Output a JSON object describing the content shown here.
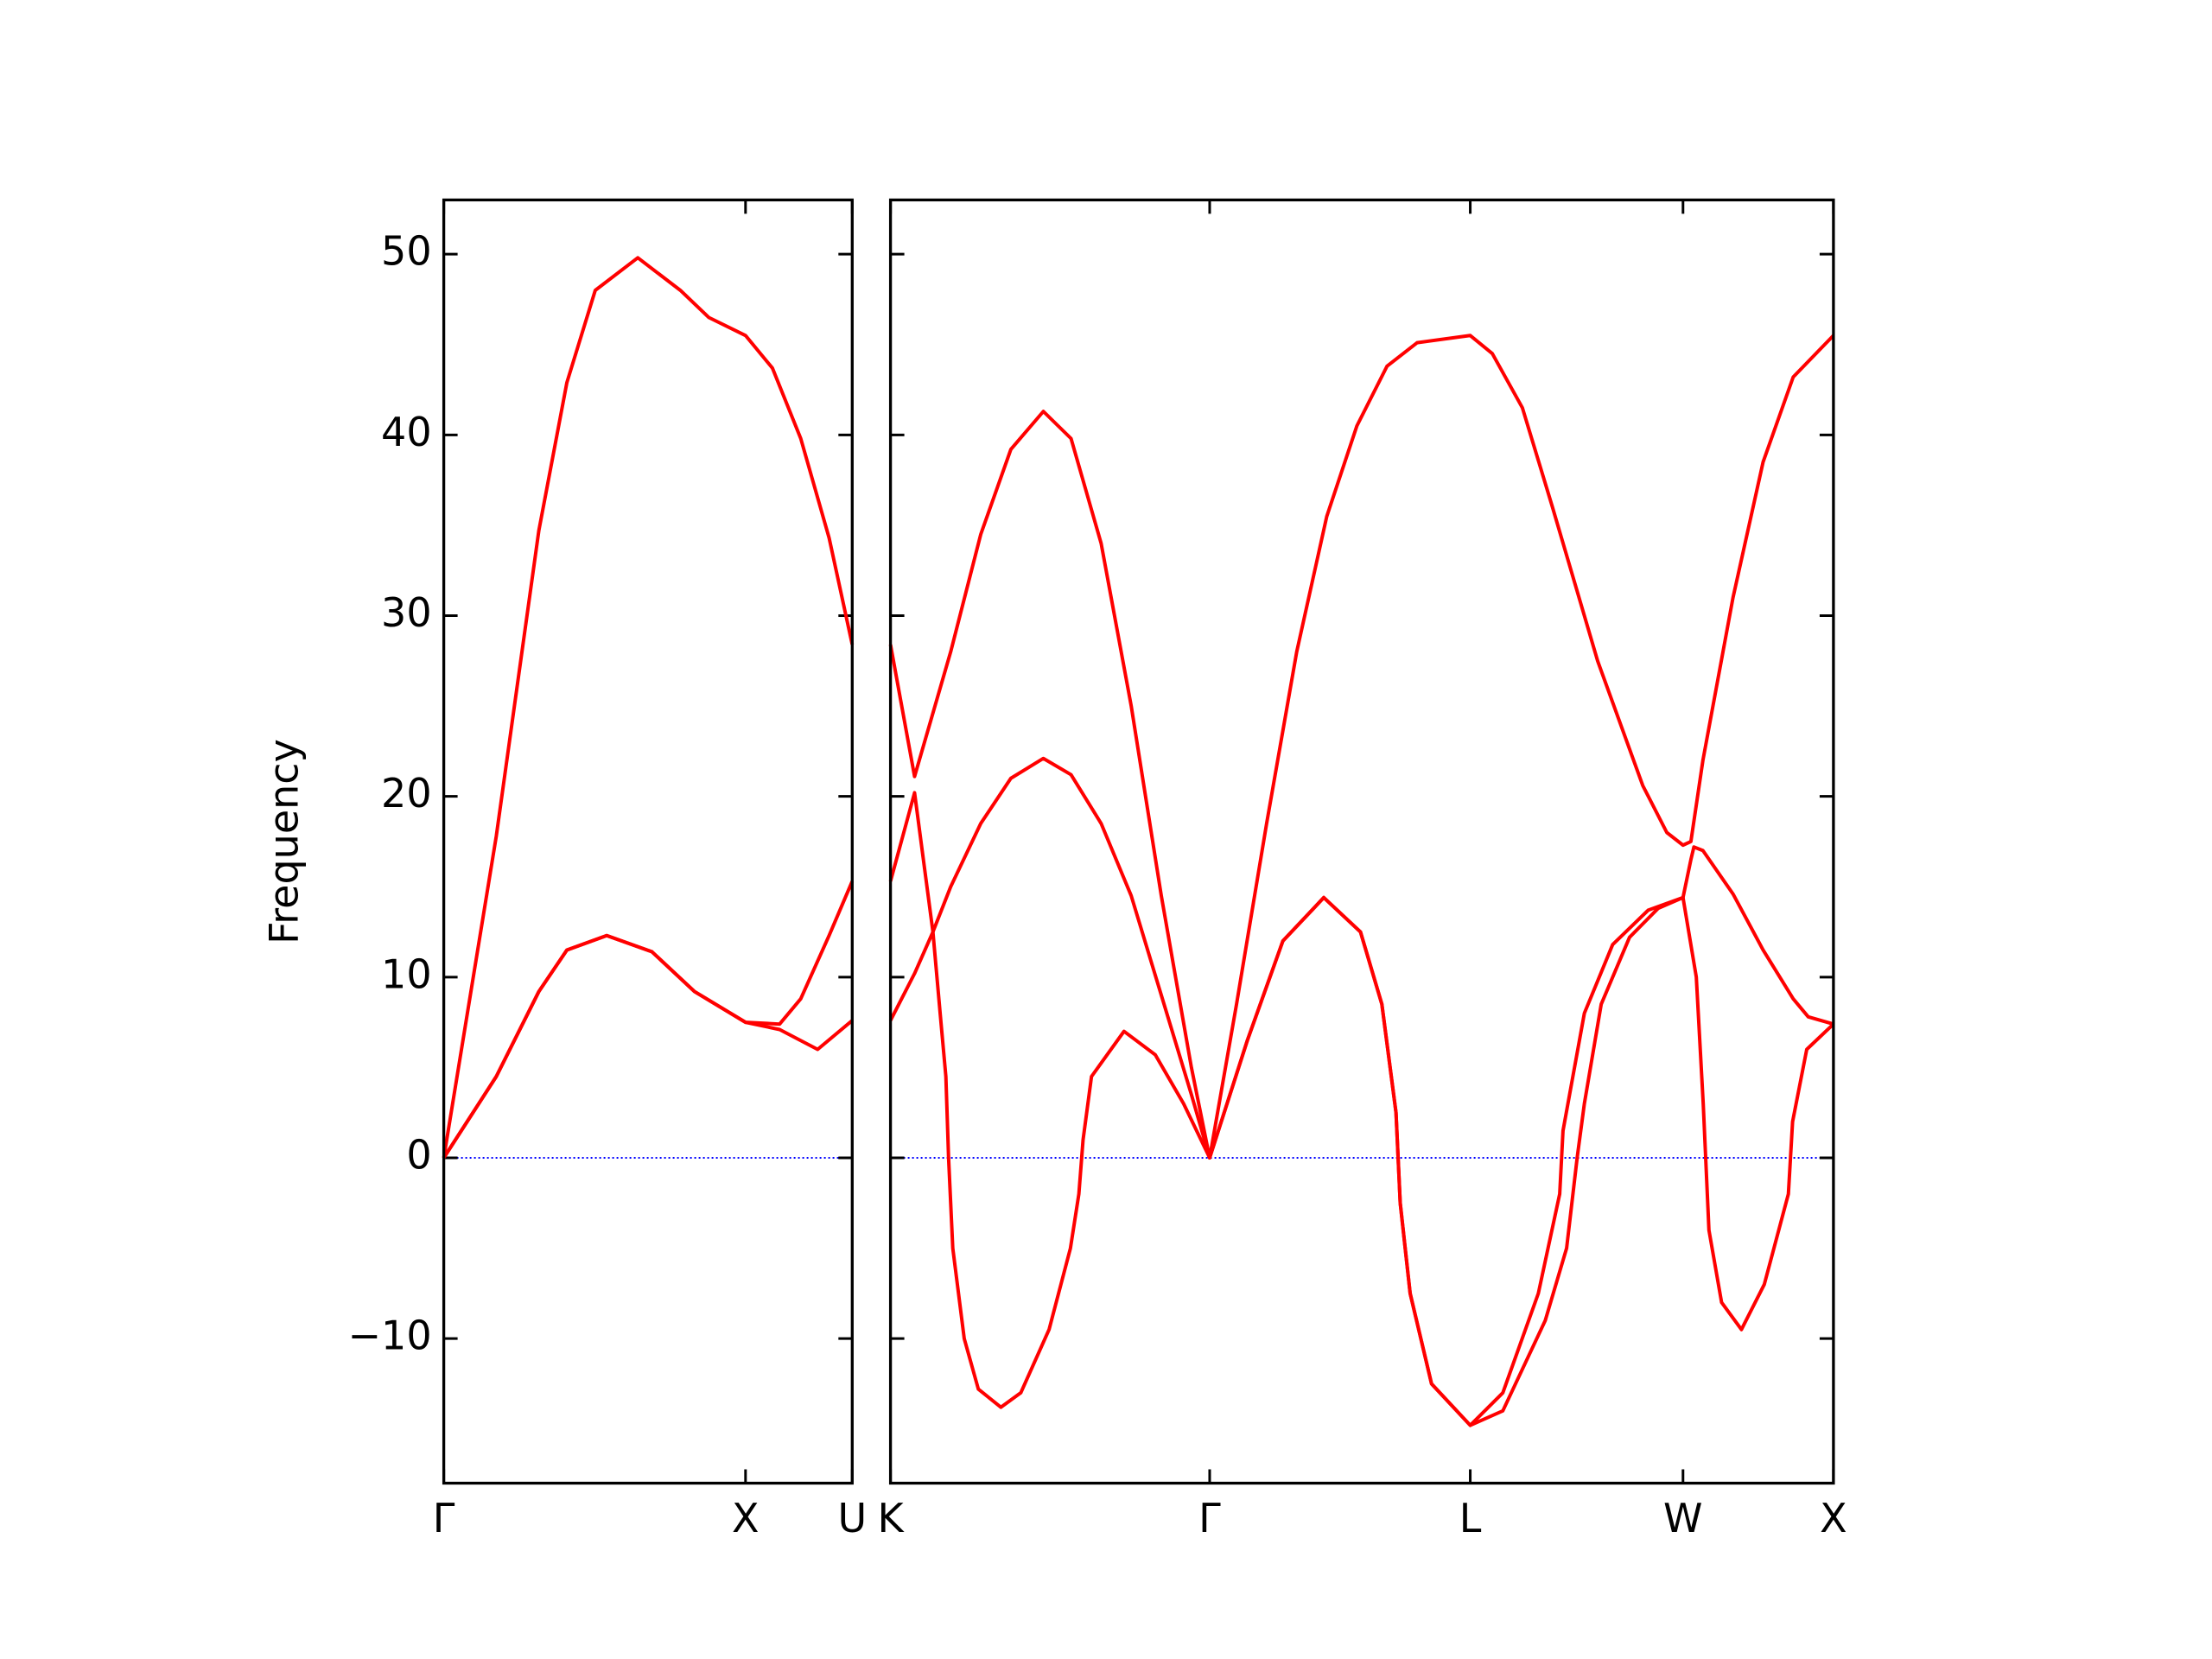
{
  "chart_data": [
    {
      "type": "line",
      "ylabel": "Frequency",
      "xlim": [
        0,
        1.3536
      ],
      "ylim": [
        -18,
        53
      ],
      "xticks": [
        {
          "value": 0,
          "label": "Γ"
        },
        {
          "value": 1,
          "label": "X"
        },
        {
          "value": 1.3536,
          "label": "U"
        }
      ],
      "yticks": [
        {
          "value": -10,
          "label": "−10"
        },
        0,
        10,
        20,
        30,
        40,
        50
      ],
      "ytick_labels": true,
      "reference_line": {
        "y": 0,
        "color": "#0000ff",
        "dash": "dotted"
      },
      "series": [
        {
          "color": "#ff0000",
          "x": [
            0,
            0.174,
            0.315,
            0.408,
            0.54,
            0.69,
            0.831,
            1.0,
            1.113,
            1.239,
            1.3536
          ],
          "values": [
            0,
            4.5,
            9.2,
            11.5,
            12.3,
            11.4,
            9.2,
            7.5,
            7.1,
            6.0,
            7.6
          ]
        },
        {
          "color": "#ff0000",
          "x": [
            0,
            0.174,
            0.315,
            0.408,
            0.54,
            0.69,
            0.831,
            1.0,
            1.113,
            1.183,
            1.277,
            1.3536
          ],
          "values": [
            0,
            4.5,
            9.2,
            11.5,
            12.3,
            11.4,
            9.2,
            7.5,
            7.4,
            8.8,
            12.3,
            15.3
          ]
        },
        {
          "color": "#ff0000",
          "x": [
            0,
            0.174,
            0.315,
            0.408,
            0.502,
            0.643,
            0.784,
            0.878,
            1.0,
            1.089,
            1.183,
            1.277,
            1.3536
          ],
          "values": [
            0,
            17.8,
            34.7,
            42.9,
            48,
            49.8,
            48,
            46.5,
            45.5,
            43.7,
            39.8,
            34.3,
            28.4
          ]
        }
      ]
    },
    {
      "type": "line",
      "xlim": [
        0,
        3.1338
      ],
      "ylim": [
        -18,
        53
      ],
      "xticks": [
        {
          "value": 0,
          "label": "K"
        },
        {
          "value": 1.0607,
          "label": "Γ"
        },
        {
          "value": 1.9267,
          "label": "L"
        },
        {
          "value": 2.6338,
          "label": "W"
        },
        {
          "value": 3.1338,
          "label": "X"
        }
      ],
      "yticks": [
        -10,
        0,
        10,
        20,
        30,
        40,
        50
      ],
      "ytick_labels": false,
      "reference_line": {
        "y": 0,
        "color": "#0000ff",
        "dash": "dotted"
      },
      "series": [
        {
          "color": "#ff0000",
          "x": [
            0,
            0.08,
            0.141,
            0.165,
            0.184,
            0.193,
            0.207,
            0.245,
            0.292,
            0.367,
            0.433,
            0.527,
            0.598,
            0.626,
            0.64,
            0.668,
            0.776,
            0.88,
            0.974,
            1.0607,
            1.186,
            1.304,
            1.44,
            1.562,
            1.633,
            1.68,
            1.694,
            1.727,
            1.798,
            1.9267,
            2.035,
            2.176,
            2.247,
            2.282,
            2.306,
            2.362,
            2.456,
            2.551,
            2.6338,
            2.678,
            2.701,
            2.72,
            2.762,
            2.828,
            2.904,
            2.984,
            2.998,
            3.045,
            3.1338
          ],
          "values": [
            7.6,
            10.2,
            12.5,
            8,
            4.5,
            0,
            -5,
            -10,
            -12.8,
            -13.8,
            -13,
            -9.5,
            -5,
            -2,
            1,
            4.5,
            7.0,
            5.7,
            3,
            0,
            6.5,
            12,
            14.4,
            12.5,
            8.5,
            2.5,
            -2.5,
            -7.5,
            -12.5,
            -14.8,
            -14,
            -9,
            -5,
            0,
            3,
            8.5,
            12.2,
            13.8,
            14.4,
            10,
            3,
            -4,
            -8,
            -9.5,
            -7,
            -2,
            2,
            6,
            7.4
          ]
        },
        {
          "color": "#ff0000",
          "x": [
            0,
            0.08,
            0.141,
            0.2,
            0.3,
            0.4,
            0.508,
            0.6,
            0.7,
            0.8,
            0.9,
            1.0,
            1.0607,
            1.186,
            1.304,
            1.44,
            1.562,
            1.633,
            1.68,
            1.694,
            1.727,
            1.798,
            1.9267,
            2.035,
            2.153,
            2.224,
            2.235,
            2.306,
            2.4,
            2.518,
            2.6338,
            2.66,
            2.67,
            2.7,
            2.8,
            2.9,
            3.0,
            3.05,
            3.1338
          ],
          "values": [
            15.3,
            20.2,
            12.5,
            15,
            18.5,
            21,
            22.1,
            21.2,
            18.5,
            14.5,
            9,
            3.5,
            0,
            6.5,
            12,
            14.4,
            12.5,
            8.5,
            2.5,
            -2.5,
            -7.5,
            -12.5,
            -14.8,
            -13,
            -7.5,
            -2,
            1.5,
            8,
            11.8,
            13.7,
            14.4,
            16.5,
            17.2,
            17,
            14.6,
            11.5,
            8.8,
            7.8,
            7.4
          ]
        },
        {
          "color": "#ff0000",
          "x": [
            0,
            0.08,
            0.2,
            0.3,
            0.4,
            0.508,
            0.6,
            0.7,
            0.8,
            0.9,
            1.0,
            1.0607,
            1.15,
            1.25,
            1.35,
            1.45,
            1.55,
            1.65,
            1.75,
            1.9267,
            2.0,
            2.1,
            2.2,
            2.35,
            2.5,
            2.58,
            2.6338,
            2.66,
            2.7,
            2.8,
            2.9,
            3.0,
            3.1338
          ],
          "values": [
            28.4,
            21.1,
            28,
            34.5,
            39.2,
            41.3,
            39.8,
            34,
            25,
            14.5,
            5,
            0,
            8.5,
            18.5,
            28,
            35.5,
            40.5,
            43.8,
            45.1,
            45.5,
            44.5,
            41.5,
            36,
            27.5,
            20.6,
            18,
            17.3,
            17.5,
            22,
            31,
            38.5,
            43.2,
            45.5
          ]
        }
      ]
    }
  ]
}
